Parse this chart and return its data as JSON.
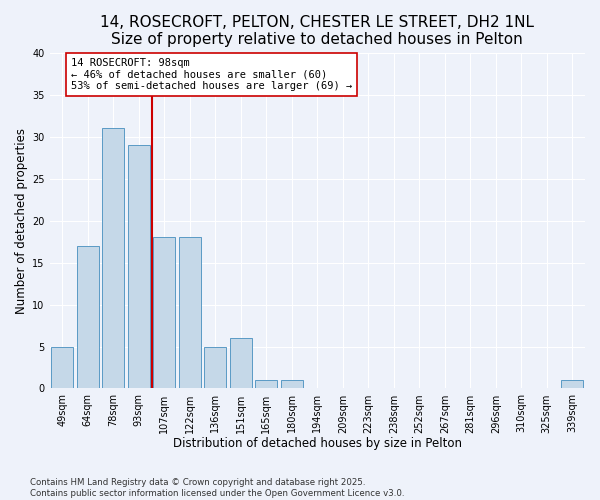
{
  "title": "14, ROSECROFT, PELTON, CHESTER LE STREET, DH2 1NL",
  "subtitle": "Size of property relative to detached houses in Pelton",
  "xlabel": "Distribution of detached houses by size in Pelton",
  "ylabel": "Number of detached properties",
  "bar_labels": [
    "49sqm",
    "64sqm",
    "78sqm",
    "93sqm",
    "107sqm",
    "122sqm",
    "136sqm",
    "151sqm",
    "165sqm",
    "180sqm",
    "194sqm",
    "209sqm",
    "223sqm",
    "238sqm",
    "252sqm",
    "267sqm",
    "281sqm",
    "296sqm",
    "310sqm",
    "325sqm",
    "339sqm"
  ],
  "bar_values": [
    5,
    17,
    31,
    29,
    18,
    18,
    5,
    6,
    1,
    1,
    0,
    0,
    0,
    0,
    0,
    0,
    0,
    0,
    0,
    0,
    1
  ],
  "bar_color": "#c5d8e8",
  "bar_edge_color": "#5a9ac5",
  "annotation_text_line1": "14 ROSECROFT: 98sqm",
  "annotation_text_line2": "← 46% of detached houses are smaller (60)",
  "annotation_text_line3": "53% of semi-detached houses are larger (69) →",
  "vline_color": "#cc0000",
  "vline_x": 3.5,
  "ylim": [
    0,
    40
  ],
  "yticks": [
    0,
    5,
    10,
    15,
    20,
    25,
    30,
    35,
    40
  ],
  "background_color": "#eef2fa",
  "footer_line1": "Contains HM Land Registry data © Crown copyright and database right 2025.",
  "footer_line2": "Contains public sector information licensed under the Open Government Licence v3.0.",
  "title_fontsize": 11,
  "axis_label_fontsize": 8.5,
  "tick_fontsize": 7,
  "annotation_fontsize": 7.5
}
